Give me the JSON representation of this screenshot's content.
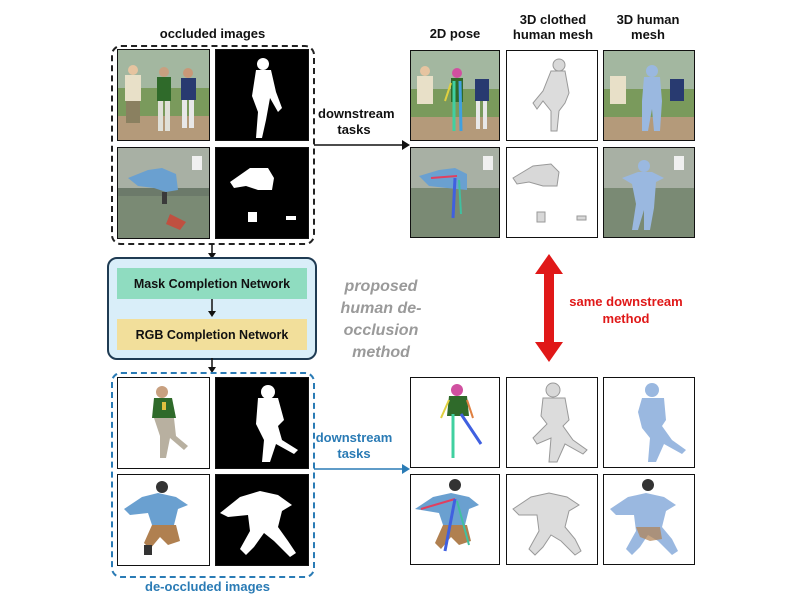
{
  "labels": {
    "occluded": "occluded images",
    "pose2d": "2D pose",
    "clothed_mesh": "3D clothed human mesh",
    "human_mesh": "3D human mesh",
    "downstream_top": "downstream tasks",
    "downstream_bottom": "downstream tasks",
    "mask_network": "Mask Completion Network",
    "rgb_network": "RGB Completion Network",
    "proposed": "proposed human de-occlusion method",
    "same_method": "same downstream method",
    "deoccluded": "de-occluded images"
  },
  "colors": {
    "blue_accent": "#2a7bb5",
    "red_accent": "#e01818",
    "gray_text": "#9a9a9a",
    "mask_module": "#8fdcc0",
    "rgb_module": "#f2df9b",
    "pipeline_bg": "#d9eef9"
  }
}
